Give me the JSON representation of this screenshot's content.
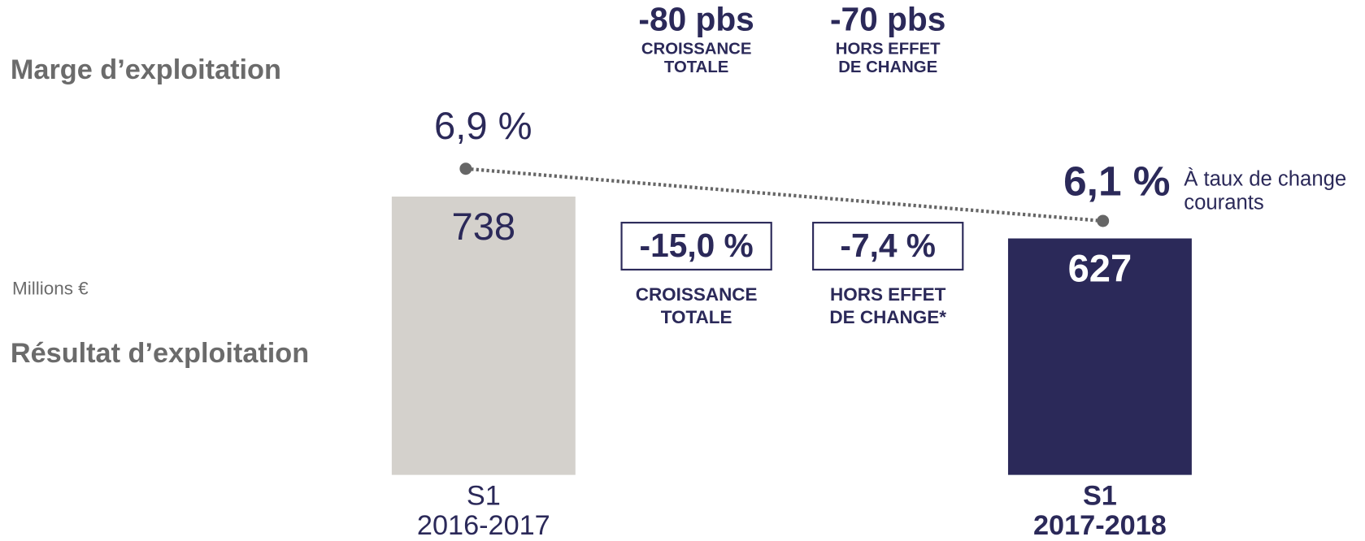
{
  "chart_data": {
    "type": "bar",
    "margin_title": "Marge d’exploitation",
    "result_title": "Résultat d’exploitation",
    "unit_label": "Millions €",
    "categories": [
      [
        "S1",
        "2016-2017"
      ],
      [
        "S1",
        "2017-2018"
      ]
    ],
    "values": [
      738,
      627
    ],
    "colors": [
      "#d4d1cc",
      "#2b2959"
    ],
    "margin": {
      "values": [
        6.9,
        6.1
      ],
      "value_labels": [
        "6,9 %",
        "6,1 %"
      ],
      "color": "#666666",
      "note": [
        "À taux de change",
        "courants"
      ]
    },
    "margin_changes": [
      {
        "value": "-80 pbs",
        "label": [
          "CROISSANCE",
          "TOTALE"
        ]
      },
      {
        "value": "-70 pbs",
        "label": [
          "HORS EFFET",
          "DE CHANGE"
        ]
      }
    ],
    "result_changes": [
      {
        "value": "-15,0 %",
        "label": [
          "CROISSANCE",
          "TOTALE"
        ]
      },
      {
        "value": "-7,4 %",
        "label": [
          "HORS EFFET",
          "DE CHANGE*"
        ]
      }
    ]
  }
}
